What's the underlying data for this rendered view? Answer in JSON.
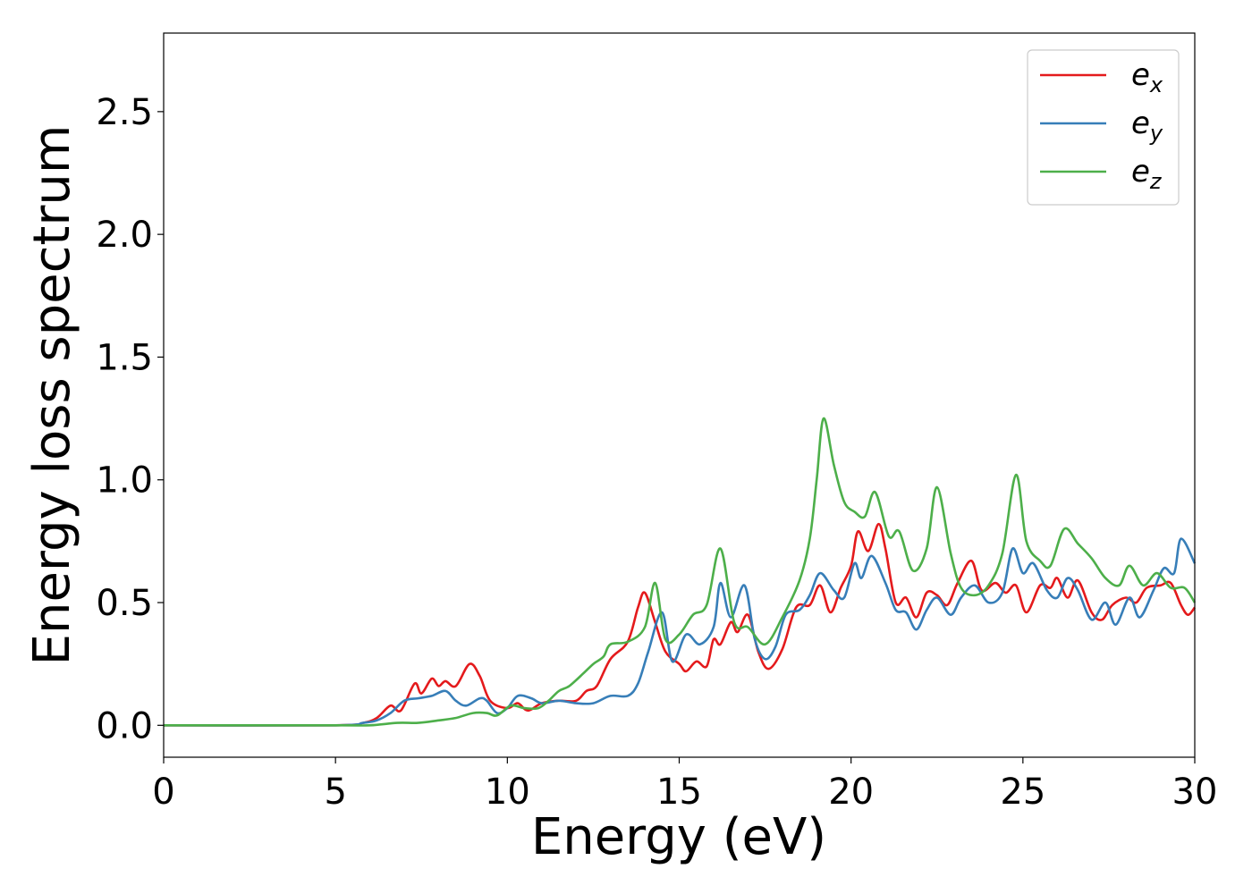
{
  "chart_data": {
    "type": "line",
    "title": "",
    "xlabel": "Energy (eV)",
    "ylabel": "Energy loss spectrum",
    "xlim": [
      0,
      30
    ],
    "ylim": [
      -0.13,
      2.82
    ],
    "xticks": [
      0,
      5,
      10,
      15,
      20,
      25,
      30
    ],
    "xtick_labels": [
      "0",
      "5",
      "10",
      "15",
      "20",
      "25",
      "30"
    ],
    "yticks": [
      0.0,
      0.5,
      1.0,
      1.5,
      2.0,
      2.5
    ],
    "ytick_labels": [
      "0.0",
      "0.5",
      "1.0",
      "1.5",
      "2.0",
      "2.5"
    ],
    "grid": false,
    "legend_position": "top-right",
    "series": [
      {
        "name": "e_x",
        "legend_base": "e",
        "legend_sub": "x",
        "color": "#e41a1c",
        "points": [
          [
            0,
            0
          ],
          [
            5,
            0.0
          ],
          [
            5.8,
            0.01
          ],
          [
            6.2,
            0.03
          ],
          [
            6.6,
            0.08
          ],
          [
            6.9,
            0.06
          ],
          [
            7.3,
            0.17
          ],
          [
            7.5,
            0.13
          ],
          [
            7.8,
            0.19
          ],
          [
            8.0,
            0.16
          ],
          [
            8.2,
            0.18
          ],
          [
            8.5,
            0.16
          ],
          [
            8.9,
            0.25
          ],
          [
            9.2,
            0.2
          ],
          [
            9.5,
            0.1
          ],
          [
            10.0,
            0.07
          ],
          [
            10.3,
            0.09
          ],
          [
            10.6,
            0.06
          ],
          [
            11.0,
            0.09
          ],
          [
            11.5,
            0.1
          ],
          [
            12.0,
            0.1
          ],
          [
            12.3,
            0.14
          ],
          [
            12.6,
            0.16
          ],
          [
            13.0,
            0.27
          ],
          [
            13.5,
            0.34
          ],
          [
            13.8,
            0.48
          ],
          [
            14.0,
            0.54
          ],
          [
            14.3,
            0.42
          ],
          [
            14.6,
            0.3
          ],
          [
            15.0,
            0.25
          ],
          [
            15.2,
            0.22
          ],
          [
            15.5,
            0.26
          ],
          [
            15.8,
            0.24
          ],
          [
            16.0,
            0.35
          ],
          [
            16.2,
            0.33
          ],
          [
            16.5,
            0.42
          ],
          [
            16.7,
            0.38
          ],
          [
            17.0,
            0.45
          ],
          [
            17.3,
            0.3
          ],
          [
            17.6,
            0.23
          ],
          [
            18.0,
            0.31
          ],
          [
            18.4,
            0.48
          ],
          [
            18.8,
            0.49
          ],
          [
            19.1,
            0.57
          ],
          [
            19.4,
            0.46
          ],
          [
            19.7,
            0.56
          ],
          [
            20.0,
            0.65
          ],
          [
            20.2,
            0.79
          ],
          [
            20.5,
            0.71
          ],
          [
            20.8,
            0.82
          ],
          [
            21.0,
            0.72
          ],
          [
            21.3,
            0.5
          ],
          [
            21.6,
            0.52
          ],
          [
            21.9,
            0.44
          ],
          [
            22.2,
            0.54
          ],
          [
            22.5,
            0.53
          ],
          [
            22.8,
            0.49
          ],
          [
            23.1,
            0.58
          ],
          [
            23.5,
            0.67
          ],
          [
            23.8,
            0.55
          ],
          [
            24.2,
            0.58
          ],
          [
            24.5,
            0.54
          ],
          [
            24.8,
            0.57
          ],
          [
            25.1,
            0.46
          ],
          [
            25.5,
            0.57
          ],
          [
            25.8,
            0.56
          ],
          [
            26.0,
            0.6
          ],
          [
            26.3,
            0.52
          ],
          [
            26.6,
            0.59
          ],
          [
            27.0,
            0.46
          ],
          [
            27.3,
            0.43
          ],
          [
            27.6,
            0.49
          ],
          [
            28.0,
            0.52
          ],
          [
            28.3,
            0.5
          ],
          [
            28.6,
            0.56
          ],
          [
            29.0,
            0.57
          ],
          [
            29.3,
            0.58
          ],
          [
            29.6,
            0.49
          ],
          [
            29.8,
            0.45
          ],
          [
            30.0,
            0.48
          ]
        ]
      },
      {
        "name": "e_y",
        "legend_base": "e",
        "legend_sub": "y",
        "color": "#377eb8",
        "points": [
          [
            0,
            0
          ],
          [
            5,
            0.0
          ],
          [
            5.8,
            0.01
          ],
          [
            6.2,
            0.02
          ],
          [
            6.6,
            0.05
          ],
          [
            7.0,
            0.1
          ],
          [
            7.4,
            0.11
          ],
          [
            7.8,
            0.12
          ],
          [
            8.2,
            0.14
          ],
          [
            8.5,
            0.1
          ],
          [
            8.8,
            0.08
          ],
          [
            9.2,
            0.11
          ],
          [
            9.4,
            0.1
          ],
          [
            9.7,
            0.05
          ],
          [
            10.0,
            0.07
          ],
          [
            10.3,
            0.12
          ],
          [
            10.7,
            0.11
          ],
          [
            11.0,
            0.09
          ],
          [
            11.5,
            0.1
          ],
          [
            12.0,
            0.09
          ],
          [
            12.5,
            0.09
          ],
          [
            13.0,
            0.12
          ],
          [
            13.5,
            0.12
          ],
          [
            13.8,
            0.17
          ],
          [
            14.1,
            0.3
          ],
          [
            14.5,
            0.46
          ],
          [
            14.8,
            0.26
          ],
          [
            15.2,
            0.37
          ],
          [
            15.6,
            0.33
          ],
          [
            16.0,
            0.4
          ],
          [
            16.2,
            0.58
          ],
          [
            16.5,
            0.44
          ],
          [
            16.9,
            0.57
          ],
          [
            17.2,
            0.35
          ],
          [
            17.5,
            0.27
          ],
          [
            17.8,
            0.32
          ],
          [
            18.1,
            0.45
          ],
          [
            18.5,
            0.47
          ],
          [
            18.8,
            0.53
          ],
          [
            19.1,
            0.62
          ],
          [
            19.5,
            0.55
          ],
          [
            19.8,
            0.52
          ],
          [
            20.1,
            0.66
          ],
          [
            20.3,
            0.6
          ],
          [
            20.6,
            0.69
          ],
          [
            21.0,
            0.58
          ],
          [
            21.3,
            0.47
          ],
          [
            21.6,
            0.46
          ],
          [
            21.9,
            0.39
          ],
          [
            22.2,
            0.47
          ],
          [
            22.5,
            0.52
          ],
          [
            22.9,
            0.45
          ],
          [
            23.2,
            0.52
          ],
          [
            23.6,
            0.57
          ],
          [
            24.0,
            0.5
          ],
          [
            24.4,
            0.54
          ],
          [
            24.7,
            0.72
          ],
          [
            25.0,
            0.62
          ],
          [
            25.3,
            0.66
          ],
          [
            25.7,
            0.55
          ],
          [
            26.0,
            0.52
          ],
          [
            26.3,
            0.6
          ],
          [
            26.6,
            0.55
          ],
          [
            27.0,
            0.43
          ],
          [
            27.4,
            0.5
          ],
          [
            27.7,
            0.41
          ],
          [
            28.1,
            0.52
          ],
          [
            28.4,
            0.44
          ],
          [
            28.8,
            0.55
          ],
          [
            29.1,
            0.64
          ],
          [
            29.4,
            0.62
          ],
          [
            29.6,
            0.76
          ],
          [
            30.0,
            0.66
          ]
        ]
      },
      {
        "name": "e_z",
        "legend_base": "e",
        "legend_sub": "z",
        "color": "#4daf4a",
        "points": [
          [
            0,
            0
          ],
          [
            5,
            0.0
          ],
          [
            6.0,
            0.0
          ],
          [
            6.8,
            0.01
          ],
          [
            7.4,
            0.01
          ],
          [
            8.0,
            0.02
          ],
          [
            8.5,
            0.03
          ],
          [
            9.0,
            0.05
          ],
          [
            9.4,
            0.05
          ],
          [
            9.7,
            0.04
          ],
          [
            10.1,
            0.08
          ],
          [
            10.5,
            0.07
          ],
          [
            10.9,
            0.07
          ],
          [
            11.2,
            0.1
          ],
          [
            11.5,
            0.14
          ],
          [
            11.8,
            0.16
          ],
          [
            12.2,
            0.21
          ],
          [
            12.5,
            0.25
          ],
          [
            12.8,
            0.28
          ],
          [
            13.0,
            0.33
          ],
          [
            13.5,
            0.34
          ],
          [
            14.0,
            0.4
          ],
          [
            14.3,
            0.58
          ],
          [
            14.6,
            0.35
          ],
          [
            15.0,
            0.37
          ],
          [
            15.4,
            0.45
          ],
          [
            15.8,
            0.49
          ],
          [
            16.2,
            0.72
          ],
          [
            16.6,
            0.42
          ],
          [
            17.0,
            0.4
          ],
          [
            17.5,
            0.33
          ],
          [
            18.0,
            0.44
          ],
          [
            18.5,
            0.59
          ],
          [
            18.8,
            0.76
          ],
          [
            19.0,
            1.0
          ],
          [
            19.2,
            1.25
          ],
          [
            19.5,
            1.06
          ],
          [
            19.8,
            0.91
          ],
          [
            20.1,
            0.87
          ],
          [
            20.4,
            0.85
          ],
          [
            20.7,
            0.95
          ],
          [
            21.1,
            0.77
          ],
          [
            21.4,
            0.79
          ],
          [
            21.8,
            0.63
          ],
          [
            22.2,
            0.72
          ],
          [
            22.5,
            0.97
          ],
          [
            22.9,
            0.7
          ],
          [
            23.2,
            0.56
          ],
          [
            23.6,
            0.53
          ],
          [
            24.0,
            0.57
          ],
          [
            24.4,
            0.7
          ],
          [
            24.8,
            1.02
          ],
          [
            25.1,
            0.75
          ],
          [
            25.5,
            0.67
          ],
          [
            25.8,
            0.65
          ],
          [
            26.2,
            0.8
          ],
          [
            26.6,
            0.74
          ],
          [
            27.0,
            0.68
          ],
          [
            27.4,
            0.6
          ],
          [
            27.8,
            0.57
          ],
          [
            28.1,
            0.65
          ],
          [
            28.5,
            0.57
          ],
          [
            28.9,
            0.62
          ],
          [
            29.3,
            0.56
          ],
          [
            29.7,
            0.56
          ],
          [
            30.0,
            0.5
          ]
        ]
      }
    ]
  }
}
